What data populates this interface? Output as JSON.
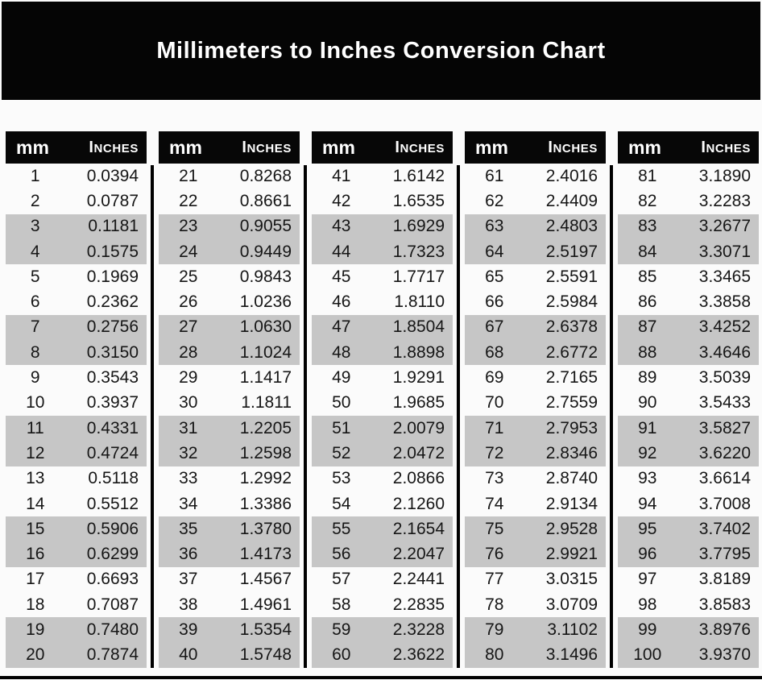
{
  "title": "Millimeters to Inches Conversion Chart",
  "colors": {
    "banner_bg": "#050505",
    "header_bg": "#070707",
    "header_text": "#ffffff",
    "row_shaded": "#c6c6c6",
    "row_plain": "#fbfbfb",
    "cell_text": "#161616",
    "divider": "#000000"
  },
  "chart_data": {
    "type": "table",
    "title": "Millimeters to Inches Conversion Chart",
    "col_headers": [
      "mm",
      "Inches"
    ],
    "shading_pattern": "alternating pairs of rows shaded gray (rows 3-4, 7-8, 11-12, ... of each panel)",
    "panels": [
      {
        "rows": [
          [
            1,
            "0.0394"
          ],
          [
            2,
            "0.0787"
          ],
          [
            3,
            "0.1181"
          ],
          [
            4,
            "0.1575"
          ],
          [
            5,
            "0.1969"
          ],
          [
            6,
            "0.2362"
          ],
          [
            7,
            "0.2756"
          ],
          [
            8,
            "0.3150"
          ],
          [
            9,
            "0.3543"
          ],
          [
            10,
            "0.3937"
          ],
          [
            11,
            "0.4331"
          ],
          [
            12,
            "0.4724"
          ],
          [
            13,
            "0.5118"
          ],
          [
            14,
            "0.5512"
          ],
          [
            15,
            "0.5906"
          ],
          [
            16,
            "0.6299"
          ],
          [
            17,
            "0.6693"
          ],
          [
            18,
            "0.7087"
          ],
          [
            19,
            "0.7480"
          ],
          [
            20,
            "0.7874"
          ]
        ]
      },
      {
        "rows": [
          [
            21,
            "0.8268"
          ],
          [
            22,
            "0.8661"
          ],
          [
            23,
            "0.9055"
          ],
          [
            24,
            "0.9449"
          ],
          [
            25,
            "0.9843"
          ],
          [
            26,
            "1.0236"
          ],
          [
            27,
            "1.0630"
          ],
          [
            28,
            "1.1024"
          ],
          [
            29,
            "1.1417"
          ],
          [
            30,
            "1.1811"
          ],
          [
            31,
            "1.2205"
          ],
          [
            32,
            "1.2598"
          ],
          [
            33,
            "1.2992"
          ],
          [
            34,
            "1.3386"
          ],
          [
            35,
            "1.3780"
          ],
          [
            36,
            "1.4173"
          ],
          [
            37,
            "1.4567"
          ],
          [
            38,
            "1.4961"
          ],
          [
            39,
            "1.5354"
          ],
          [
            40,
            "1.5748"
          ]
        ]
      },
      {
        "rows": [
          [
            41,
            "1.6142"
          ],
          [
            42,
            "1.6535"
          ],
          [
            43,
            "1.6929"
          ],
          [
            44,
            "1.7323"
          ],
          [
            45,
            "1.7717"
          ],
          [
            46,
            "1.8110"
          ],
          [
            47,
            "1.8504"
          ],
          [
            48,
            "1.8898"
          ],
          [
            49,
            "1.9291"
          ],
          [
            50,
            "1.9685"
          ],
          [
            51,
            "2.0079"
          ],
          [
            52,
            "2.0472"
          ],
          [
            53,
            "2.0866"
          ],
          [
            54,
            "2.1260"
          ],
          [
            55,
            "2.1654"
          ],
          [
            56,
            "2.2047"
          ],
          [
            57,
            "2.2441"
          ],
          [
            58,
            "2.2835"
          ],
          [
            59,
            "2.3228"
          ],
          [
            60,
            "2.3622"
          ]
        ]
      },
      {
        "rows": [
          [
            61,
            "2.4016"
          ],
          [
            62,
            "2.4409"
          ],
          [
            63,
            "2.4803"
          ],
          [
            64,
            "2.5197"
          ],
          [
            65,
            "2.5591"
          ],
          [
            66,
            "2.5984"
          ],
          [
            67,
            "2.6378"
          ],
          [
            68,
            "2.6772"
          ],
          [
            69,
            "2.7165"
          ],
          [
            70,
            "2.7559"
          ],
          [
            71,
            "2.7953"
          ],
          [
            72,
            "2.8346"
          ],
          [
            73,
            "2.8740"
          ],
          [
            74,
            "2.9134"
          ],
          [
            75,
            "2.9528"
          ],
          [
            76,
            "2.9921"
          ],
          [
            77,
            "3.0315"
          ],
          [
            78,
            "3.0709"
          ],
          [
            79,
            "3.1102"
          ],
          [
            80,
            "3.1496"
          ]
        ]
      },
      {
        "rows": [
          [
            81,
            "3.1890"
          ],
          [
            82,
            "3.2283"
          ],
          [
            83,
            "3.2677"
          ],
          [
            84,
            "3.3071"
          ],
          [
            85,
            "3.3465"
          ],
          [
            86,
            "3.3858"
          ],
          [
            87,
            "3.4252"
          ],
          [
            88,
            "3.4646"
          ],
          [
            89,
            "3.5039"
          ],
          [
            90,
            "3.5433"
          ],
          [
            91,
            "3.5827"
          ],
          [
            92,
            "3.6220"
          ],
          [
            93,
            "3.6614"
          ],
          [
            94,
            "3.7008"
          ],
          [
            95,
            "3.7402"
          ],
          [
            96,
            "3.7795"
          ],
          [
            97,
            "3.8189"
          ],
          [
            98,
            "3.8583"
          ],
          [
            99,
            "3.8976"
          ],
          [
            100,
            "3.9370"
          ]
        ]
      }
    ]
  }
}
